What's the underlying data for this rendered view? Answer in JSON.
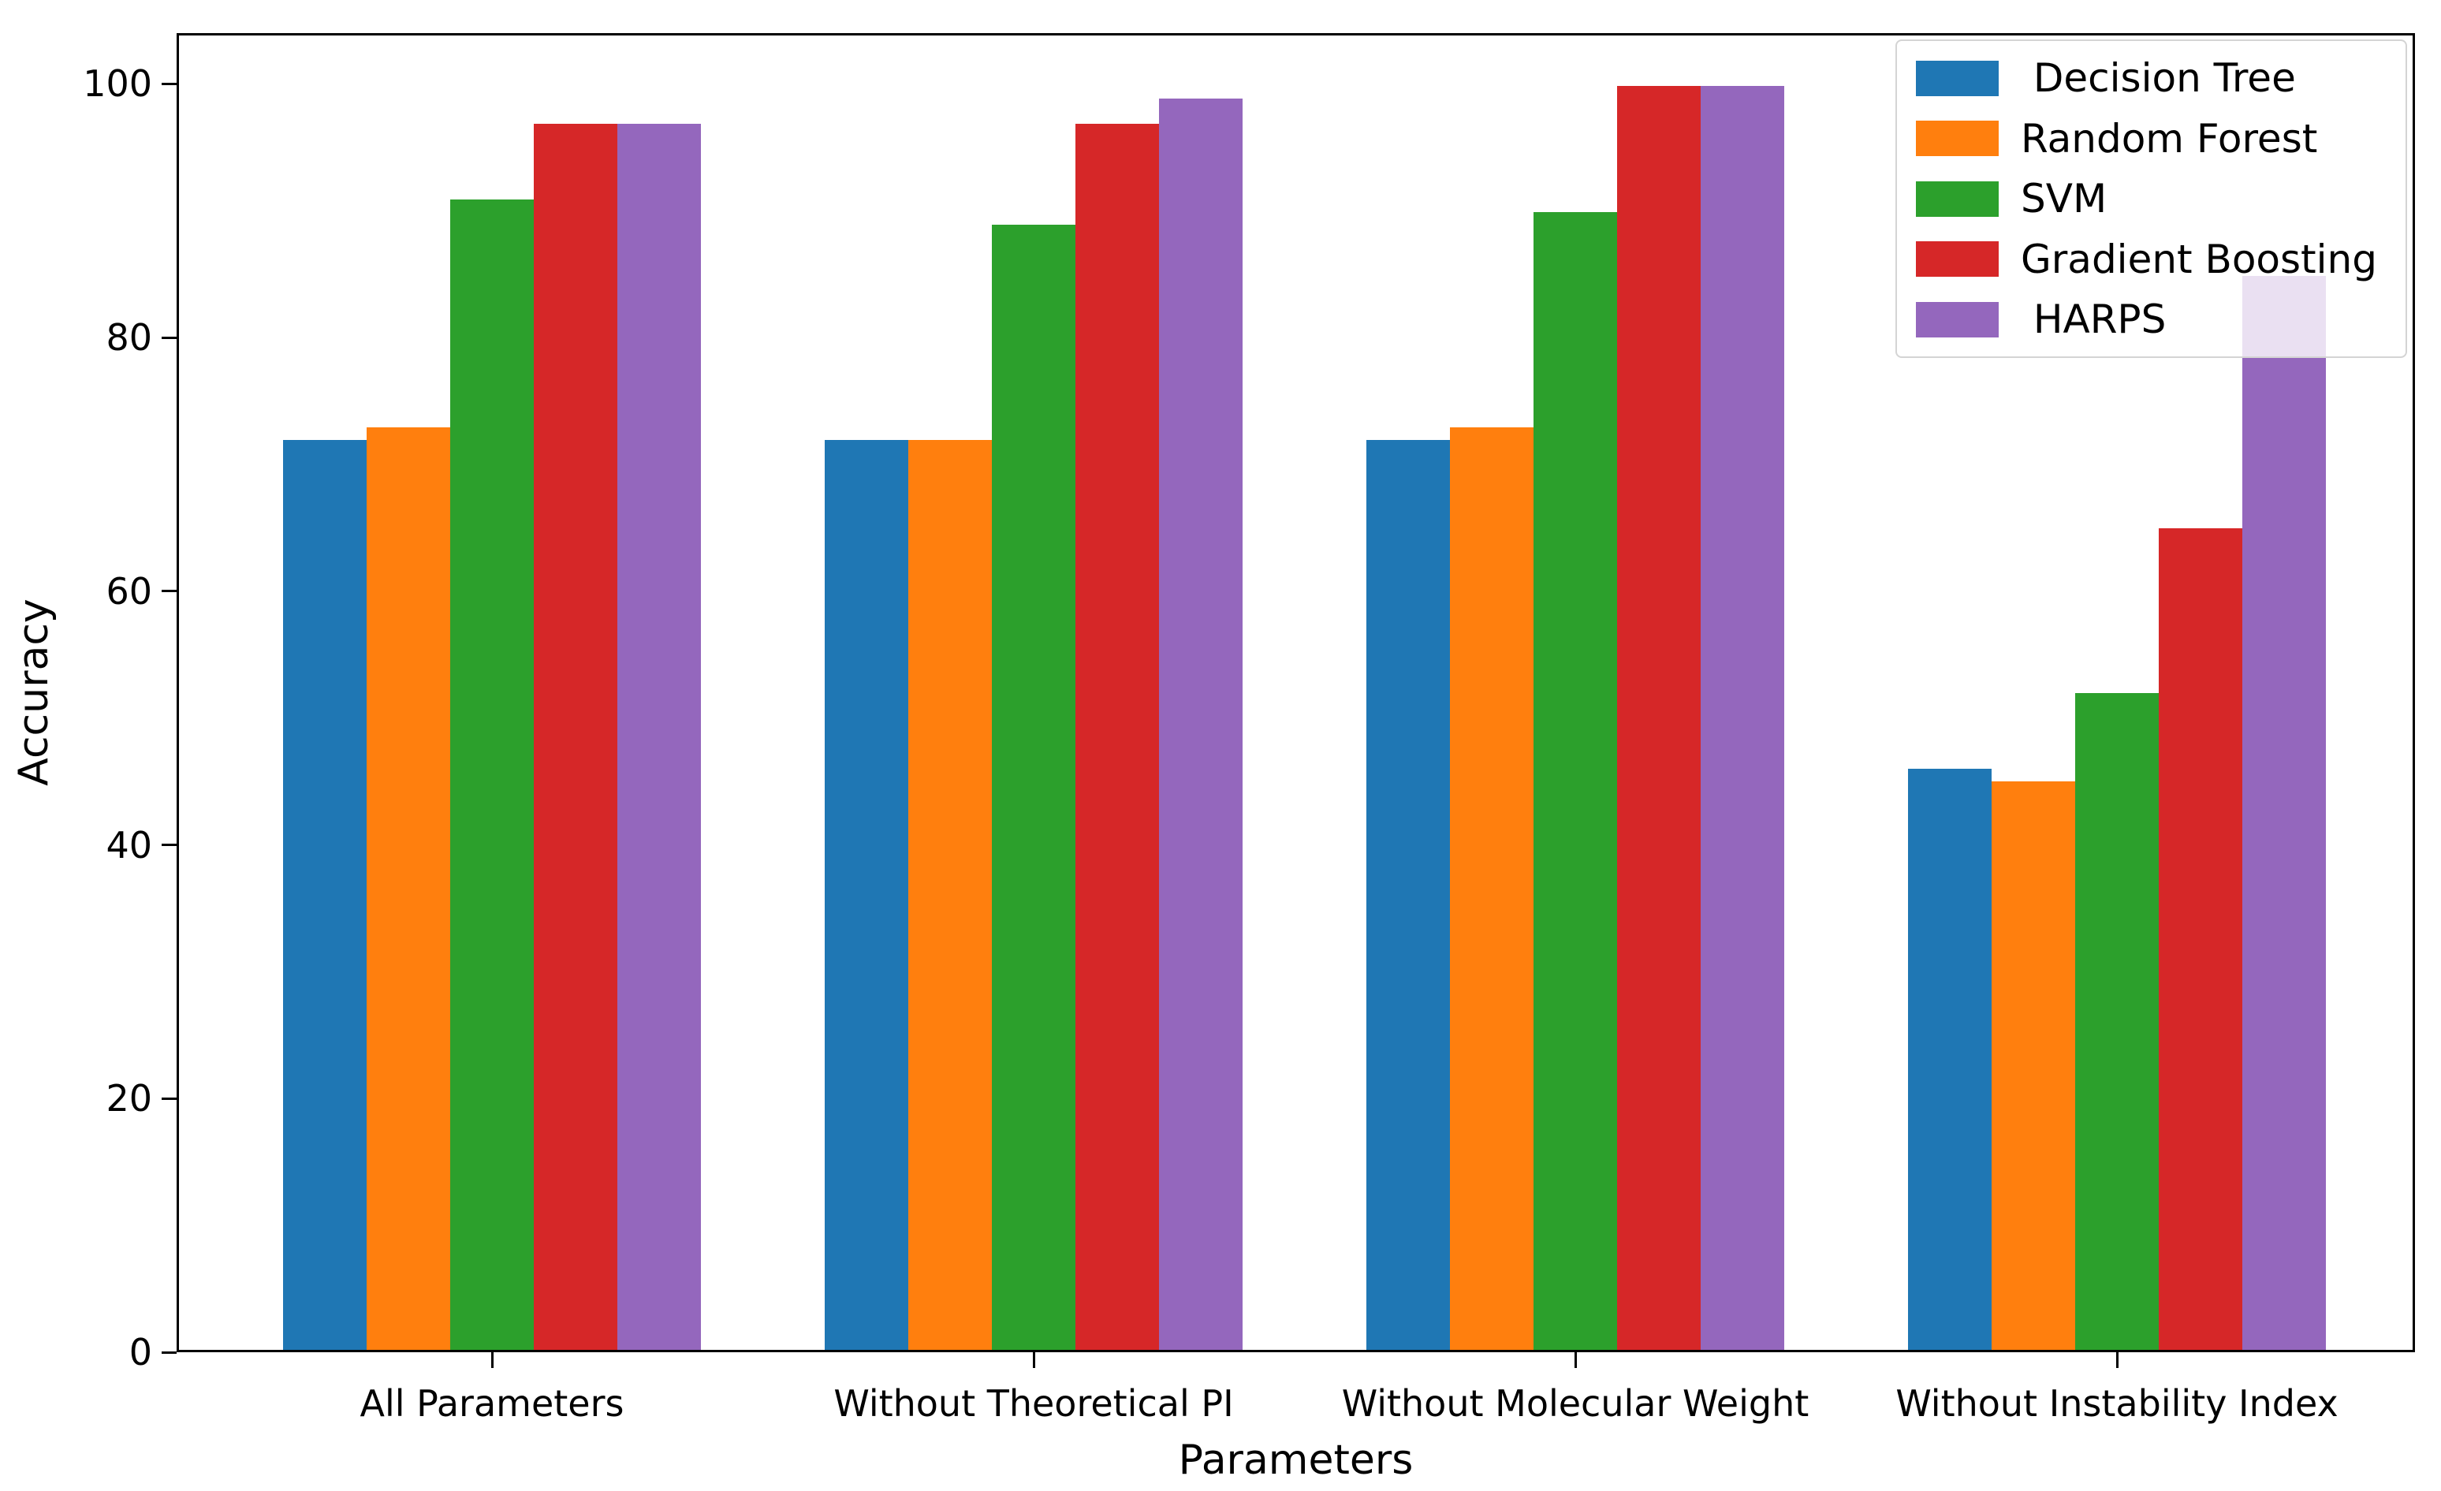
{
  "chart_data": {
    "type": "bar",
    "title": "",
    "xlabel": "Parameters",
    "ylabel": "Accuracy",
    "ylim": [
      0,
      104
    ],
    "yticks": [
      0,
      20,
      40,
      60,
      80,
      100
    ],
    "grid": false,
    "legend_position": "upper right",
    "categories": [
      "All Parameters",
      "Without Theoretical PI",
      "Without Molecular Weight",
      "Without Instability Index"
    ],
    "series": [
      {
        "name": " Decision Tree",
        "color": "#1f77b4",
        "values": [
          72,
          72,
          72,
          46
        ]
      },
      {
        "name": "Random Forest",
        "color": "#ff7f0e",
        "values": [
          73,
          72,
          73,
          45
        ]
      },
      {
        "name": "SVM",
        "color": "#2ca02c",
        "values": [
          91,
          89,
          90,
          52
        ]
      },
      {
        "name": "Gradient Boosting",
        "color": "#d62728",
        "values": [
          97,
          97,
          100,
          65
        ]
      },
      {
        "name": " HARPS",
        "color": "#9467bd",
        "values": [
          97,
          99,
          100,
          85
        ]
      }
    ]
  }
}
